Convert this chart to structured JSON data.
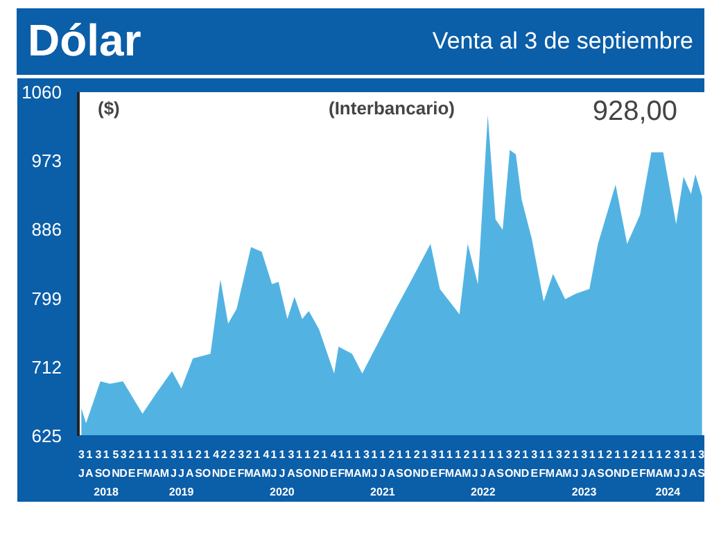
{
  "chart_data": {
    "type": "area",
    "title": "Dólar",
    "subtitle": "(Interbancario)",
    "ylabel": "($)",
    "annotations": [
      "Venta al 3 de septiembre",
      "928,00"
    ],
    "series": [
      {
        "color": "#52b3e2",
        "x": [
          "2018-07-03",
          "2018-07-20",
          "2018-09-10",
          "2018-10-15",
          "2018-12-01",
          "2019-02-10",
          "2019-04-01",
          "2019-05-28",
          "2019-07-01",
          "2019-08-12",
          "2019-10-15",
          "2019-11-20",
          "2019-12-18",
          "2020-01-18",
          "2020-03-10",
          "2020-04-18",
          "2020-05-25",
          "2020-06-18",
          "2020-07-20",
          "2020-08-15",
          "2020-09-12",
          "2020-10-06",
          "2020-11-12",
          "2021-01-06",
          "2021-01-22",
          "2021-03-12",
          "2021-04-18",
          "2021-05-25",
          "2021-08-18",
          "2021-10-10",
          "2021-12-22",
          "2022-01-25",
          "2022-04-06",
          "2022-05-06",
          "2022-06-12",
          "2022-07-18",
          "2022-08-15",
          "2022-09-10",
          "2022-10-06",
          "2022-10-28",
          "2022-11-18",
          "2022-12-25",
          "2023-02-06",
          "2023-03-12",
          "2023-04-25",
          "2023-06-03",
          "2023-07-22",
          "2023-08-22",
          "2023-10-25",
          "2023-12-06",
          "2024-01-22",
          "2024-03-03",
          "2024-04-15",
          "2024-06-01",
          "2024-06-28",
          "2024-07-25",
          "2024-08-10",
          "2024-09-03"
        ],
        "values": [
          660,
          641,
          694,
          691,
          694,
          653,
          679,
          707,
          685,
          723,
          729,
          823,
          767,
          786,
          864,
          858,
          817,
          820,
          773,
          801,
          773,
          783,
          760,
          704,
          738,
          729,
          704,
          729,
          786,
          820,
          868,
          811,
          779,
          868,
          817,
          1031,
          899,
          886,
          987,
          981,
          924,
          874,
          795,
          830,
          798,
          805,
          811,
          868,
          943,
          868,
          905,
          984,
          984,
          893,
          953,
          931,
          956,
          928
        ]
      }
    ],
    "ylim": [
      625,
      1060
    ],
    "yticks": [
      625,
      712,
      799,
      886,
      973,
      1060
    ],
    "xlim": [
      "2018-06-22",
      "2024-09-14"
    ],
    "xticks": [
      {
        "value": "2018-07-03",
        "label": "3\nJ"
      },
      {
        "value": "2018-08-01",
        "label": "1\nA"
      },
      {
        "value": "2018-09-03",
        "label": "3\nS"
      },
      {
        "value": "2018-10-01",
        "label": "1\nO\n2018"
      },
      {
        "value": "2018-11-05",
        "label": "5\nN"
      },
      {
        "value": "2018-12-03",
        "label": "3\nD"
      },
      {
        "value": "2019-01-02",
        "label": "2\nE"
      },
      {
        "value": "2019-02-01",
        "label": "1\nF"
      },
      {
        "value": "2019-03-01",
        "label": "1\nM"
      },
      {
        "value": "2019-04-01",
        "label": "1\nA"
      },
      {
        "value": "2019-05-01",
        "label": "1\nM"
      },
      {
        "value": "2019-06-03",
        "label": "3\nJ"
      },
      {
        "value": "2019-07-01",
        "label": "1\nJ\n2019"
      },
      {
        "value": "2019-08-01",
        "label": "1\nA"
      },
      {
        "value": "2019-09-02",
        "label": "2\nS"
      },
      {
        "value": "2019-10-01",
        "label": "1\nO"
      },
      {
        "value": "2019-11-04",
        "label": "4\nN"
      },
      {
        "value": "2019-12-02",
        "label": "2\nD"
      },
      {
        "value": "2020-01-02",
        "label": "2\nE"
      },
      {
        "value": "2020-02-03",
        "label": "3\nF"
      },
      {
        "value": "2020-03-02",
        "label": "2\nM"
      },
      {
        "value": "2020-04-01",
        "label": "1\nA"
      },
      {
        "value": "2020-05-04",
        "label": "4\nM"
      },
      {
        "value": "2020-06-01",
        "label": "1\nJ"
      },
      {
        "value": "2020-07-01",
        "label": "1\nJ\n2020"
      },
      {
        "value": "2020-08-03",
        "label": "3\nA"
      },
      {
        "value": "2020-09-01",
        "label": "1\nS"
      },
      {
        "value": "2020-10-01",
        "label": "1\nO"
      },
      {
        "value": "2020-11-02",
        "label": "2\nN"
      },
      {
        "value": "2020-12-01",
        "label": "1\nD"
      },
      {
        "value": "2021-01-04",
        "label": "4\nE"
      },
      {
        "value": "2021-02-01",
        "label": "1\nF"
      },
      {
        "value": "2021-03-01",
        "label": "1\nM"
      },
      {
        "value": "2021-04-01",
        "label": "1\nA"
      },
      {
        "value": "2021-05-03",
        "label": "3\nM"
      },
      {
        "value": "2021-06-01",
        "label": "1\nJ"
      },
      {
        "value": "2021-07-01",
        "label": "1\nJ\n2021"
      },
      {
        "value": "2021-08-02",
        "label": "2\nA"
      },
      {
        "value": "2021-09-01",
        "label": "1\nS"
      },
      {
        "value": "2021-10-01",
        "label": "1\nO"
      },
      {
        "value": "2021-11-02",
        "label": "2\nN"
      },
      {
        "value": "2021-12-01",
        "label": "1\nD"
      },
      {
        "value": "2022-01-03",
        "label": "3\nE"
      },
      {
        "value": "2022-02-01",
        "label": "1\nF"
      },
      {
        "value": "2022-03-01",
        "label": "1\nM"
      },
      {
        "value": "2022-04-01",
        "label": "1\nA"
      },
      {
        "value": "2022-05-02",
        "label": "2\nM"
      },
      {
        "value": "2022-06-01",
        "label": "1\nJ"
      },
      {
        "value": "2022-07-01",
        "label": "1\nJ\n2022"
      },
      {
        "value": "2022-08-01",
        "label": "1\nA"
      },
      {
        "value": "2022-09-01",
        "label": "1\nS"
      },
      {
        "value": "2022-10-03",
        "label": "3\nO"
      },
      {
        "value": "2022-11-02",
        "label": "2\nN"
      },
      {
        "value": "2022-12-01",
        "label": "1\nD"
      },
      {
        "value": "2023-01-03",
        "label": "3\nE"
      },
      {
        "value": "2023-02-01",
        "label": "1\nF"
      },
      {
        "value": "2023-03-01",
        "label": "1\nM"
      },
      {
        "value": "2023-04-03",
        "label": "3\nA"
      },
      {
        "value": "2023-05-02",
        "label": "2\nM"
      },
      {
        "value": "2023-06-01",
        "label": "1\nJ"
      },
      {
        "value": "2023-07-03",
        "label": "3\nJ\n2023"
      },
      {
        "value": "2023-08-01",
        "label": "1\nA"
      },
      {
        "value": "2023-09-01",
        "label": "1\nS"
      },
      {
        "value": "2023-10-02",
        "label": "2\nO"
      },
      {
        "value": "2023-11-01",
        "label": "1\nN"
      },
      {
        "value": "2023-12-01",
        "label": "1\nD"
      },
      {
        "value": "2024-01-02",
        "label": "2\nE"
      },
      {
        "value": "2024-02-01",
        "label": "1\nF"
      },
      {
        "value": "2024-03-01",
        "label": "1\nM"
      },
      {
        "value": "2024-04-01",
        "label": "1\nA"
      },
      {
        "value": "2024-05-02",
        "label": "2\nM\n2024"
      },
      {
        "value": "2024-06-03",
        "label": "3\nJ"
      },
      {
        "value": "2024-07-01",
        "label": "1\nJ"
      },
      {
        "value": "2024-08-01",
        "label": "1\nA"
      },
      {
        "value": "2024-09-03",
        "label": "3\nS"
      }
    ]
  }
}
